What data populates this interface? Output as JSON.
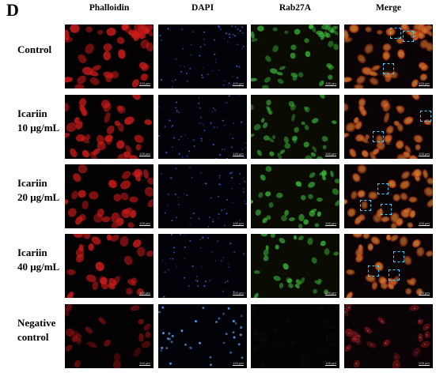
{
  "figure": {
    "panel_letter": "D",
    "columns": [
      {
        "key": "phalloidin",
        "label": "Phalloidin",
        "color": "#e0241c"
      },
      {
        "key": "dapi",
        "label": "DAPI",
        "color": "#3556ff"
      },
      {
        "key": "rab27a",
        "label": "Rab27A",
        "color": "#33c733"
      },
      {
        "key": "merge",
        "label": "Merge",
        "color": "#d06a2a"
      }
    ],
    "rows": [
      {
        "key": "control",
        "lines": [
          "Control"
        ],
        "density": 1.0,
        "green": 0.85
      },
      {
        "key": "icariin-10",
        "lines": [
          "Icariin",
          "10 μg/mL"
        ],
        "density": 0.9,
        "green": 0.8
      },
      {
        "key": "icariin-20",
        "lines": [
          "Icariin",
          "20 μg/mL"
        ],
        "density": 0.8,
        "green": 0.95
      },
      {
        "key": "icariin-40",
        "lines": [
          "Icariin",
          "40 μg/mL"
        ],
        "density": 0.7,
        "green": 0.9
      },
      {
        "key": "negative-control",
        "lines": [
          "Negative",
          "control"
        ],
        "density": 0.55,
        "green": 0.06
      }
    ],
    "scale_bar_label": "100 μm",
    "roi_color": "#3fd0ff"
  }
}
